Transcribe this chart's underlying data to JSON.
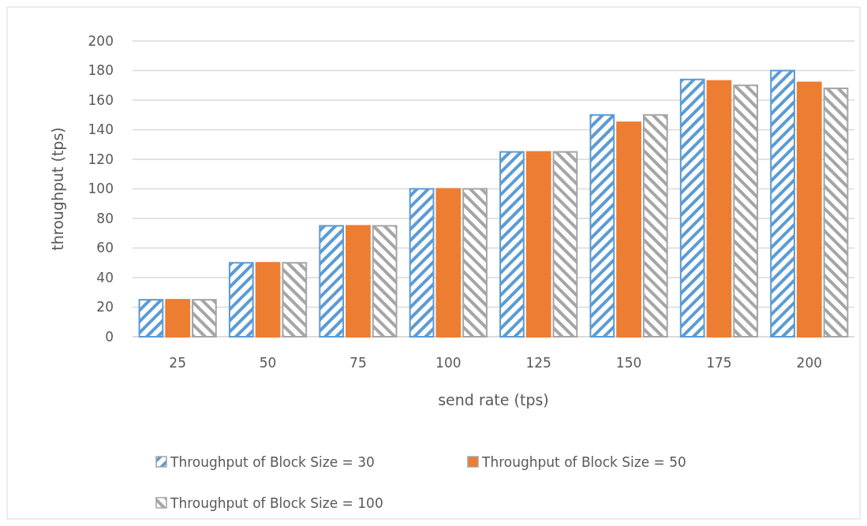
{
  "chart_data": {
    "type": "bar",
    "xlabel": "send rate (tps)",
    "ylabel": "throughput (tps)",
    "categories": [
      "25",
      "50",
      "75",
      "100",
      "125",
      "150",
      "175",
      "200"
    ],
    "series": [
      {
        "name": "Throughput of Block Size = 30",
        "color": "#5b9bd5",
        "values": [
          25,
          50,
          75,
          100,
          125,
          150,
          174,
          180
        ]
      },
      {
        "name": "Throughput of Block Size = 50",
        "color": "#ed7d31",
        "values": [
          25,
          50,
          75,
          100,
          125,
          145,
          173,
          172
        ]
      },
      {
        "name": "Throughput of Block Size = 100",
        "color": "#a5a5a5",
        "values": [
          25,
          50,
          75,
          100,
          125,
          150,
          170,
          168
        ]
      }
    ],
    "ylim": [
      0,
      200
    ],
    "yticks": [
      0,
      20,
      40,
      60,
      80,
      100,
      120,
      140,
      160,
      180,
      200
    ],
    "grid": "y",
    "legend": "bottom"
  }
}
